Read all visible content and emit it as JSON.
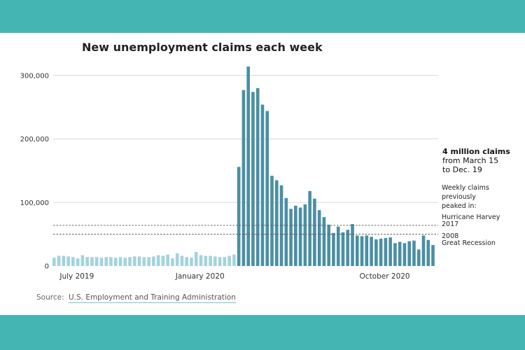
{
  "colors": {
    "frame": "#45b5b3",
    "pre_pandemic_bar": "#a3d2dd",
    "pandemic_bar": "#4a8fa4",
    "grid": "#d9d9d9",
    "reference_line": "#555555"
  },
  "source": {
    "prefix": "Source:",
    "link_text": "U.S. Employment and Training Administration"
  },
  "chart_data": {
    "type": "bar",
    "title": "New unemployment claims each week",
    "xlabel": "",
    "ylabel": "",
    "ylim": [
      0,
      335000
    ],
    "yticks": [
      0,
      100000,
      200000,
      300000
    ],
    "ytick_labels": [
      "0",
      "100,000",
      "200,000",
      "300,000"
    ],
    "grid": true,
    "xticks": [
      {
        "label": "July 2019",
        "index": 2
      },
      {
        "label": "January 2020",
        "index": 28
      },
      {
        "label": "October 2020",
        "index": 67
      }
    ],
    "pandemic_start_index": 39,
    "values": [
      13000,
      16000,
      16000,
      15000,
      14000,
      12000,
      17000,
      14000,
      14000,
      14000,
      13000,
      14000,
      14000,
      13000,
      14000,
      13000,
      14000,
      15000,
      15000,
      14000,
      14000,
      15000,
      17000,
      16000,
      18000,
      12000,
      20000,
      16000,
      14000,
      13000,
      22000,
      17000,
      16000,
      16000,
      15000,
      14000,
      14000,
      16000,
      18000,
      156000,
      277000,
      314000,
      274000,
      280000,
      254000,
      244000,
      142000,
      135000,
      127000,
      107000,
      90000,
      95000,
      92000,
      97000,
      118000,
      106000,
      88000,
      77000,
      65000,
      52000,
      62000,
      53000,
      57000,
      66000,
      48000,
      47000,
      48000,
      46000,
      42000,
      43000,
      44000,
      45000,
      36000,
      38000,
      36000,
      39000,
      40000,
      26000,
      48000,
      41000,
      33000
    ],
    "reference_lines": [
      {
        "name": "Hurricane Harvey 2017",
        "value": 64000,
        "label_line1": "Hurricane Harvey",
        "label_line2": "2017"
      },
      {
        "name": "2008 Great Recession",
        "value": 50000,
        "label_line1": "2008",
        "label_line2": "Great Recession"
      }
    ],
    "annotations": {
      "total_bold": "4 million claims",
      "total_line2": "from March 15",
      "total_line3": "to Dec. 19",
      "peaks_line1": "Weekly claims",
      "peaks_line2": "previously",
      "peaks_line3": "peaked in:"
    }
  }
}
